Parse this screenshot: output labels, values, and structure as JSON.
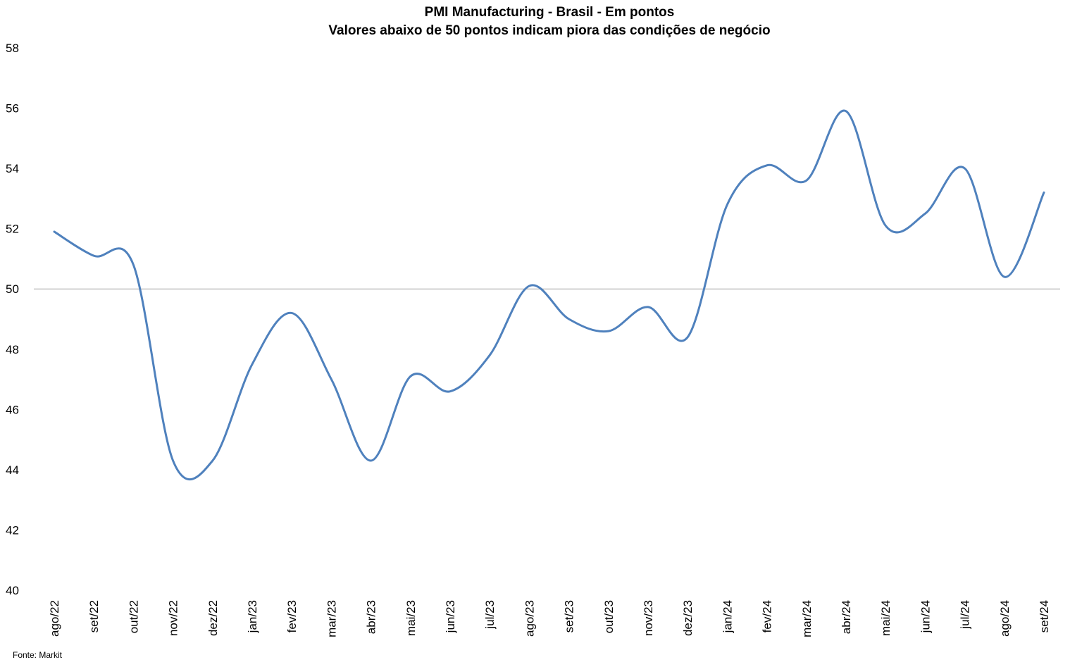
{
  "chart_data": {
    "type": "line",
    "title": "PMI Manufacturing - Brasil - Em pontos",
    "subtitle": "Valores abaixo de 50 pontos indicam piora das condições de negócio",
    "xlabel": "",
    "ylabel": "",
    "ylim": [
      40,
      58
    ],
    "yticks": [
      40,
      42,
      44,
      46,
      48,
      50,
      52,
      54,
      56,
      58
    ],
    "reference_line": 50,
    "grid": false,
    "categories": [
      "ago/22",
      "set/22",
      "out/22",
      "nov/22",
      "dez/22",
      "jan/23",
      "fev/23",
      "mar/23",
      "abr/23",
      "mai/23",
      "jun/23",
      "jul/23",
      "ago/23",
      "set/23",
      "out/23",
      "nov/23",
      "dez/23",
      "jan/24",
      "fev/24",
      "mar/24",
      "abr/24",
      "mai/24",
      "jun/24",
      "jul/24",
      "ago/24",
      "set/24"
    ],
    "series": [
      {
        "color": "#4f81bd",
        "values": [
          51.9,
          51.1,
          50.8,
          44.3,
          44.3,
          47.5,
          49.2,
          47.0,
          44.3,
          47.1,
          46.6,
          47.8,
          50.1,
          49.0,
          48.6,
          49.4,
          48.4,
          52.8,
          54.1,
          53.6,
          55.9,
          52.1,
          52.5,
          54.0,
          50.4,
          53.2
        ]
      }
    ]
  },
  "source": "Fonte: Markit"
}
